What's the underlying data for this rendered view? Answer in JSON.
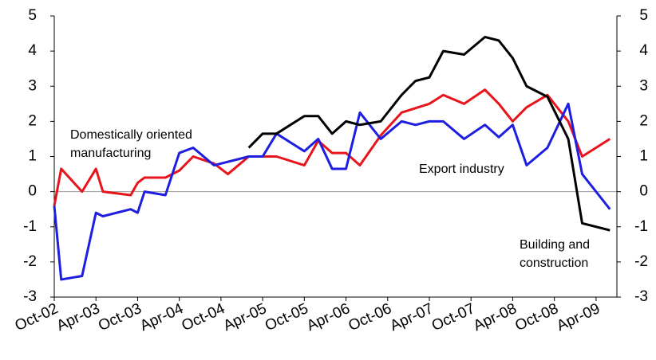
{
  "chart_data": {
    "type": "line",
    "xlim": [
      0,
      81
    ],
    "xticks": [
      {
        "value": 0,
        "label": "Oct-02"
      },
      {
        "value": 6,
        "label": "Apr-03"
      },
      {
        "value": 12,
        "label": "Oct-03"
      },
      {
        "value": 18,
        "label": "Apr-04"
      },
      {
        "value": 24,
        "label": "Oct-04"
      },
      {
        "value": 30,
        "label": "Apr-05"
      },
      {
        "value": 36,
        "label": "Oct-05"
      },
      {
        "value": 42,
        "label": "Apr-06"
      },
      {
        "value": 48,
        "label": "Oct-06"
      },
      {
        "value": 54,
        "label": "Apr-07"
      },
      {
        "value": 60,
        "label": "Oct-07"
      },
      {
        "value": 66,
        "label": "Apr-08"
      },
      {
        "value": 72,
        "label": "Oct-08"
      },
      {
        "value": 78,
        "label": "Apr-09"
      }
    ],
    "ylim": [
      -3,
      5
    ],
    "yticks": [
      -3,
      -2,
      -1,
      0,
      1,
      2,
      3,
      4,
      5
    ],
    "y2lim": [
      -3,
      5
    ],
    "y2ticks": [
      -3,
      -2,
      -1,
      0,
      1,
      2,
      3,
      4,
      5
    ],
    "series": [
      {
        "name": [
          "Domestically oriented",
          "manufacturing"
        ],
        "color": "#e8141b",
        "x": [
          0,
          1,
          4,
          6,
          7,
          11,
          12,
          13,
          16,
          18,
          20,
          23,
          25,
          28,
          32,
          36,
          38,
          40,
          42,
          44,
          47,
          50,
          54,
          56,
          59,
          62,
          64,
          66,
          68,
          71,
          74,
          76,
          80
        ],
        "values": [
          -0.4,
          0.65,
          0,
          0.65,
          0,
          -0.1,
          0.25,
          0.4,
          0.4,
          0.6,
          1.0,
          0.8,
          0.5,
          1.0,
          1.0,
          0.75,
          1.45,
          1.1,
          1.1,
          0.75,
          1.6,
          2.25,
          2.5,
          2.75,
          2.5,
          2.9,
          2.5,
          2.0,
          2.4,
          2.75,
          2.0,
          1.0,
          1.5
        ]
      },
      {
        "name": [
          "Export industry"
        ],
        "color": "#1e1ee0",
        "x": [
          0,
          1,
          4,
          6,
          7,
          11,
          12,
          13,
          16,
          18,
          20,
          23,
          28,
          30,
          32,
          36,
          38,
          40,
          42,
          44,
          47,
          50,
          52,
          54,
          56,
          59,
          62,
          64,
          66,
          68,
          71,
          74,
          76,
          80
        ],
        "values": [
          -0.4,
          -2.5,
          -2.4,
          -0.6,
          -0.7,
          -0.5,
          -0.6,
          0,
          -0.1,
          1.1,
          1.25,
          0.75,
          1.0,
          1.0,
          1.65,
          1.15,
          1.5,
          0.65,
          0.65,
          2.25,
          1.5,
          2.0,
          1.9,
          2.0,
          2.0,
          1.5,
          1.9,
          1.55,
          1.9,
          0.75,
          1.25,
          2.5,
          0.5,
          -0.5
        ]
      },
      {
        "name": [
          "Building and",
          "construction"
        ],
        "color": "#000000",
        "x": [
          28,
          30,
          32,
          36,
          38,
          40,
          42,
          44,
          47,
          50,
          52,
          54,
          56,
          59,
          62,
          64,
          66,
          68,
          71,
          74,
          76,
          80
        ],
        "values": [
          1.25,
          1.65,
          1.65,
          2.15,
          2.15,
          1.65,
          2.0,
          1.9,
          2.0,
          2.75,
          3.15,
          3.25,
          4.0,
          3.9,
          4.4,
          4.3,
          3.8,
          3.0,
          2.7,
          1.5,
          -0.9,
          -1.1
        ]
      }
    ]
  }
}
